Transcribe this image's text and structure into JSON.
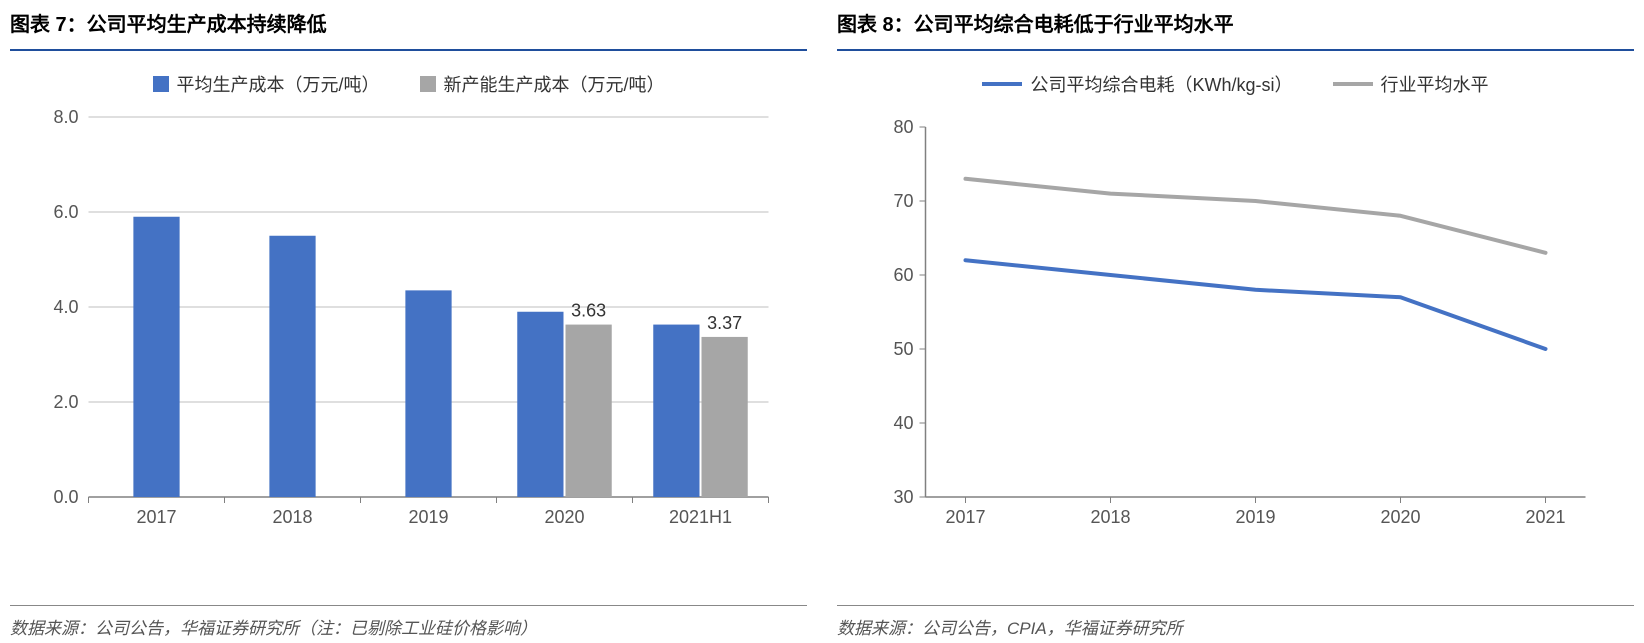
{
  "left_chart": {
    "title": "图表 7：公司平均生产成本持续降低",
    "type": "bar",
    "legend": [
      {
        "label": "平均生产成本（万元/吨）",
        "color": "#4472c4"
      },
      {
        "label": "新产能生产成本（万元/吨）",
        "color": "#a6a6a6"
      }
    ],
    "categories": [
      "2017",
      "2018",
      "2019",
      "2020",
      "2021H1"
    ],
    "series1": [
      5.9,
      5.5,
      4.35,
      3.9,
      3.63
    ],
    "series2": [
      null,
      null,
      null,
      3.63,
      3.37
    ],
    "data_labels": [
      {
        "cat_index": 3,
        "series": 2,
        "text": "3.63"
      },
      {
        "cat_index": 4,
        "series": 2,
        "text": "3.37"
      }
    ],
    "ylim": [
      0.0,
      8.0
    ],
    "ytick_step": 2.0,
    "yticks": [
      "0.0",
      "2.0",
      "4.0",
      "6.0",
      "8.0"
    ],
    "bar_colors": [
      "#4472c4",
      "#a6a6a6"
    ],
    "background_color": "#ffffff",
    "grid_color": "#bfbfbf",
    "axis_color": "#808080",
    "title_fontsize": 20,
    "label_fontsize": 18,
    "bar_width_ratio": 0.34,
    "footer": "数据来源：公司公告，华福证券研究所（注：已剔除工业硅价格影响）"
  },
  "right_chart": {
    "title": "图表 8：公司平均综合电耗低于行业平均水平",
    "type": "line",
    "legend": [
      {
        "label": "公司平均综合电耗（KWh/kg-si）",
        "color": "#4472c4"
      },
      {
        "label": "行业平均水平",
        "color": "#a6a6a6"
      }
    ],
    "categories": [
      "2017",
      "2018",
      "2019",
      "2020",
      "2021"
    ],
    "series1": [
      62,
      60,
      58,
      57,
      50
    ],
    "series2": [
      73,
      71,
      70,
      68,
      63
    ],
    "line_colors": [
      "#4472c4",
      "#a6a6a6"
    ],
    "line_width": 4,
    "ylim": [
      30,
      80
    ],
    "ytick_step": 10,
    "yticks": [
      "30",
      "40",
      "50",
      "60",
      "70",
      "80"
    ],
    "background_color": "#ffffff",
    "grid_color": "#ffffff",
    "axis_color": "#808080",
    "title_fontsize": 20,
    "label_fontsize": 18,
    "footer": "数据来源：公司公告，CPIA，华福证券研究所"
  }
}
